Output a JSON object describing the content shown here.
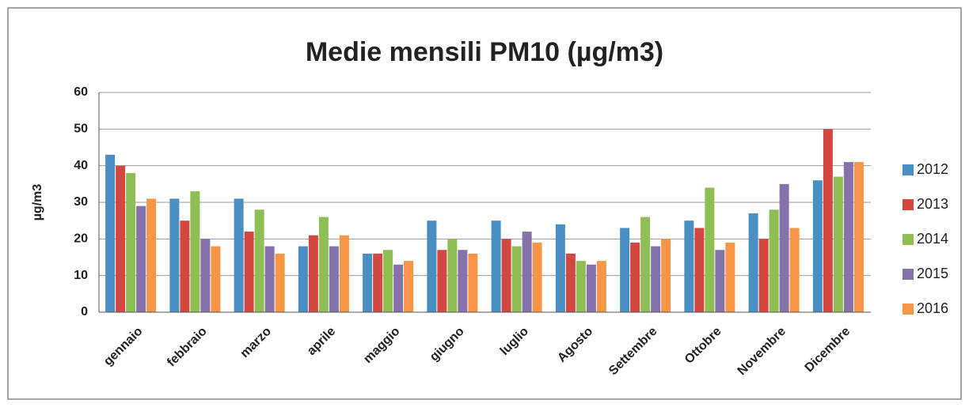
{
  "chart_data": {
    "type": "bar",
    "title": "Medie mensili PM10 (µg/m3)",
    "y_label": "µg/m3",
    "categories": [
      "gennaio",
      "febbraio",
      "marzo",
      "aprile",
      "maggio",
      "giugno",
      "luglio",
      "Agosto",
      "Settembre",
      "Ottobre",
      "Novembre",
      "Dicembre"
    ],
    "series": [
      {
        "name": "2012",
        "color": "#4a8fc4",
        "values": [
          43,
          31,
          31,
          18,
          16,
          25,
          25,
          24,
          23,
          25,
          27,
          36
        ]
      },
      {
        "name": "2013",
        "color": "#d2473f",
        "values": [
          40,
          25,
          22,
          21,
          16,
          17,
          20,
          16,
          19,
          23,
          20,
          50
        ]
      },
      {
        "name": "2014",
        "color": "#8fbe55",
        "values": [
          38,
          33,
          28,
          26,
          17,
          20,
          18,
          14,
          26,
          34,
          28,
          37
        ]
      },
      {
        "name": "2015",
        "color": "#8672aa",
        "values": [
          29,
          20,
          18,
          18,
          13,
          17,
          22,
          13,
          18,
          17,
          35,
          41
        ]
      },
      {
        "name": "2016",
        "color": "#f79646",
        "values": [
          31,
          18,
          16,
          21,
          14,
          16,
          19,
          14,
          20,
          19,
          23,
          41
        ]
      }
    ],
    "ylim": [
      0,
      60
    ],
    "yticks": [
      0,
      10,
      20,
      30,
      40,
      50,
      60
    ],
    "grid": true,
    "legend": "right"
  }
}
